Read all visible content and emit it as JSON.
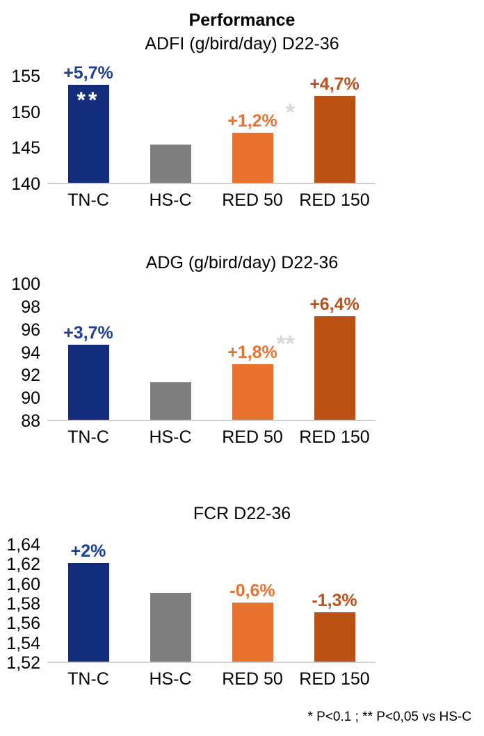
{
  "page_title": "Performance",
  "footnote": "* P<0.1 ; ** P<0,05 vs HS-C",
  "colors": {
    "navy": "#132d7c",
    "gray": "#7f7f7f",
    "orange": "#e8722e",
    "rust": "#bc5114",
    "label_blue": "#1d3e9b",
    "label_orange": "#ed7230",
    "label_rust": "#c0511a",
    "sig_gray": "#d9d9d9",
    "baseline_gray": "#cfcfcf"
  },
  "chart_data": [
    {
      "type": "bar",
      "title": "ADFI (g/bird/day) D22-36",
      "categories": [
        "TN-C",
        "HS-C",
        "RED 50",
        "RED 150"
      ],
      "values": [
        153.6,
        145.3,
        147.0,
        152.1
      ],
      "ylim": [
        140,
        155
      ],
      "grid": false,
      "legend": "none",
      "yticks": [
        {
          "label": "155",
          "value": 155
        },
        {
          "label": "150",
          "value": 150
        },
        {
          "label": "145",
          "value": 145
        },
        {
          "label": "140",
          "value": 140
        }
      ],
      "bars": [
        {
          "category": "TN-C",
          "value": 153.6,
          "color": "navy",
          "delta_label": "+5,7%",
          "delta_color": "label_blue",
          "sig_inside": "**"
        },
        {
          "category": "HS-C",
          "value": 145.3,
          "color": "gray"
        },
        {
          "category": "RED 50",
          "value": 147.0,
          "color": "orange",
          "delta_label": "+1,2%",
          "delta_color": "label_orange",
          "sig_sup": "*"
        },
        {
          "category": "RED 150",
          "value": 152.1,
          "color": "rust",
          "delta_label": "+4,7%",
          "delta_color": "label_rust"
        }
      ]
    },
    {
      "type": "bar",
      "title": "ADG (g/bird/day) D22-36",
      "categories": [
        "TN-C",
        "HS-C",
        "RED 50",
        "RED 150"
      ],
      "values": [
        94.6,
        91.3,
        92.9,
        97.1
      ],
      "ylim": [
        88,
        100
      ],
      "grid": false,
      "legend": "none",
      "yticks": [
        {
          "label": "100",
          "value": 100
        },
        {
          "label": "98",
          "value": 98
        },
        {
          "label": "96",
          "value": 96
        },
        {
          "label": "94",
          "value": 94
        },
        {
          "label": "92",
          "value": 92
        },
        {
          "label": "90",
          "value": 90
        },
        {
          "label": "88",
          "value": 88
        }
      ],
      "bars": [
        {
          "category": "TN-C",
          "value": 94.6,
          "color": "navy",
          "delta_label": "+3,7%",
          "delta_color": "label_blue"
        },
        {
          "category": "HS-C",
          "value": 91.3,
          "color": "gray"
        },
        {
          "category": "RED 50",
          "value": 92.9,
          "color": "orange",
          "delta_label": "+1,8%",
          "delta_color": "label_orange",
          "sig_sup": "**"
        },
        {
          "category": "RED 150",
          "value": 97.1,
          "color": "rust",
          "delta_label": "+6,4%",
          "delta_color": "label_rust"
        }
      ]
    },
    {
      "type": "bar",
      "title": "FCR D22-36",
      "categories": [
        "TN-C",
        "HS-C",
        "RED 50",
        "RED 150"
      ],
      "values": [
        1.62,
        1.59,
        1.58,
        1.57
      ],
      "ylim": [
        1.52,
        1.64
      ],
      "grid": false,
      "legend": "none",
      "yticks": [
        {
          "label": "1,64",
          "value": 1.64
        },
        {
          "label": "1,62",
          "value": 1.62
        },
        {
          "label": "1,60",
          "value": 1.6
        },
        {
          "label": "1,58",
          "value": 1.58
        },
        {
          "label": "1,56",
          "value": 1.56
        },
        {
          "label": "1,54",
          "value": 1.54
        },
        {
          "label": "1,52",
          "value": 1.52
        }
      ],
      "bars": [
        {
          "category": "TN-C",
          "value": 1.62,
          "color": "navy",
          "delta_label": "+2%",
          "delta_color": "label_blue"
        },
        {
          "category": "HS-C",
          "value": 1.59,
          "color": "gray"
        },
        {
          "category": "RED 50",
          "value": 1.58,
          "color": "orange",
          "delta_label": "-0,6%",
          "delta_color": "label_orange"
        },
        {
          "category": "RED 150",
          "value": 1.57,
          "color": "rust",
          "delta_label": "-1,3%",
          "delta_color": "label_rust"
        }
      ]
    }
  ]
}
